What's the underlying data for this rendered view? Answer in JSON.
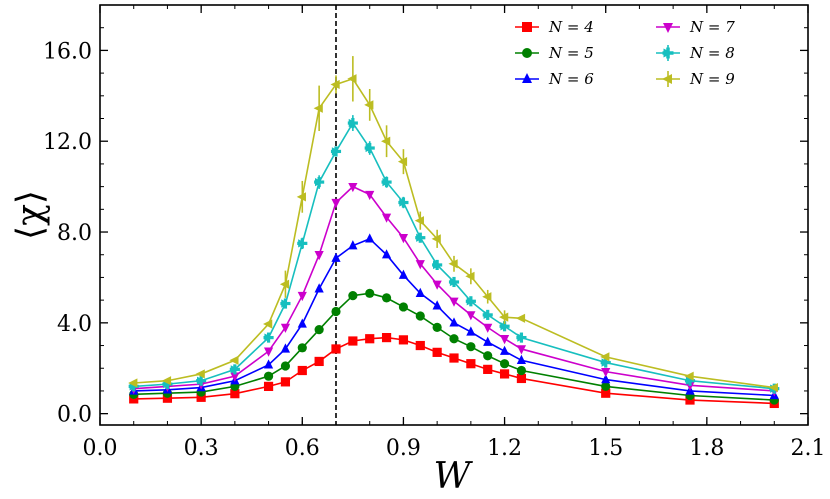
{
  "chart_data": {
    "type": "line",
    "xlabel": "W",
    "ylabel": "⟨χ⟩",
    "xlim": [
      0.0,
      2.1
    ],
    "ylim": [
      -0.5,
      18.0
    ],
    "xticks": [
      "0.0",
      "0.3",
      "0.6",
      "0.9",
      "1.2",
      "1.5",
      "1.8",
      "2.1"
    ],
    "xtick_values": [
      0.0,
      0.3,
      0.6,
      0.9,
      1.2,
      1.5,
      1.8,
      2.1
    ],
    "yticks": [
      "0.0",
      "4.0",
      "8.0",
      "12.0",
      "16.0"
    ],
    "ytick_values": [
      0.0,
      4.0,
      8.0,
      12.0,
      16.0
    ],
    "vline": 0.7,
    "legend_position": "top-right",
    "x": [
      0.1,
      0.2,
      0.3,
      0.4,
      0.5,
      0.55,
      0.6,
      0.65,
      0.7,
      0.75,
      0.8,
      0.85,
      0.9,
      0.95,
      1.0,
      1.05,
      1.1,
      1.15,
      1.2,
      1.25,
      1.5,
      1.75,
      2.0
    ],
    "series": [
      {
        "name": "N = 4",
        "color": "#ff0000",
        "marker": "square",
        "values": [
          0.65,
          0.68,
          0.72,
          0.88,
          1.2,
          1.4,
          1.9,
          2.3,
          2.85,
          3.2,
          3.3,
          3.35,
          3.25,
          3.0,
          2.7,
          2.45,
          2.2,
          1.95,
          1.75,
          1.55,
          0.9,
          0.6,
          0.45
        ],
        "errors": [
          0,
          0,
          0,
          0,
          0,
          0,
          0,
          0,
          0,
          0,
          0,
          0,
          0,
          0,
          0,
          0,
          0,
          0,
          0,
          0,
          0,
          0,
          0
        ]
      },
      {
        "name": "N = 5",
        "color": "#008000",
        "marker": "circle",
        "values": [
          0.85,
          0.9,
          0.95,
          1.2,
          1.65,
          2.1,
          2.9,
          3.7,
          4.5,
          5.2,
          5.3,
          5.1,
          4.7,
          4.3,
          3.8,
          3.3,
          2.95,
          2.55,
          2.2,
          1.9,
          1.2,
          0.8,
          0.6
        ],
        "errors": [
          0,
          0,
          0,
          0,
          0,
          0,
          0,
          0,
          0,
          0,
          0,
          0,
          0,
          0,
          0,
          0,
          0,
          0,
          0,
          0,
          0,
          0,
          0
        ]
      },
      {
        "name": "N = 6",
        "color": "#0000ff",
        "marker": "triangle-up",
        "values": [
          1.0,
          1.05,
          1.15,
          1.45,
          2.15,
          2.85,
          3.95,
          5.5,
          6.85,
          7.4,
          7.7,
          7.0,
          6.1,
          5.3,
          4.75,
          4.0,
          3.6,
          3.15,
          2.75,
          2.35,
          1.5,
          1.0,
          0.8
        ],
        "errors": [
          0,
          0,
          0,
          0,
          0,
          0,
          0,
          0,
          0,
          0,
          0,
          0,
          0,
          0,
          0,
          0,
          0,
          0,
          0,
          0,
          0,
          0,
          0
        ]
      },
      {
        "name": "N = 7",
        "color": "#cc00cc",
        "marker": "triangle-down",
        "values": [
          1.1,
          1.2,
          1.3,
          1.65,
          2.75,
          3.8,
          5.2,
          7.0,
          9.3,
          10.0,
          9.65,
          8.65,
          7.75,
          6.6,
          5.7,
          4.95,
          4.35,
          3.8,
          3.3,
          2.85,
          1.85,
          1.25,
          1.0
        ],
        "errors": [
          0,
          0,
          0,
          0,
          0,
          0,
          0,
          0,
          0,
          0,
          0,
          0,
          0,
          0,
          0,
          0,
          0,
          0,
          0,
          0,
          0,
          0,
          0
        ]
      },
      {
        "name": "N = 8",
        "color": "#17bfbf",
        "marker": "cross",
        "values": [
          1.2,
          1.3,
          1.45,
          1.95,
          3.35,
          4.85,
          7.5,
          10.2,
          11.55,
          12.8,
          11.7,
          10.2,
          9.3,
          7.75,
          6.55,
          5.8,
          4.95,
          4.35,
          3.85,
          3.35,
          2.25,
          1.45,
          1.1
        ],
        "errors": [
          0,
          0,
          0,
          0,
          0,
          0.2,
          0.25,
          0.3,
          0.2,
          0.35,
          0.3,
          0.25,
          0.25,
          0.2,
          0.2,
          0.15,
          0.15,
          0.1,
          0.1,
          0,
          0,
          0,
          0
        ],
        "error_flags": "small"
      },
      {
        "name": "N = 9",
        "color": "#bcbd22",
        "marker": "triangle-left",
        "values": [
          1.35,
          1.45,
          1.75,
          2.35,
          3.95,
          5.7,
          9.55,
          13.45,
          14.5,
          14.75,
          13.6,
          12.0,
          11.1,
          8.5,
          7.7,
          6.6,
          6.05,
          5.15,
          4.25,
          4.2,
          2.5,
          1.65,
          1.15
        ],
        "errors": [
          0,
          0,
          0,
          0,
          0,
          0.6,
          0.7,
          1.0,
          0.4,
          1.0,
          0.7,
          0.7,
          0.55,
          0.4,
          0.4,
          0.35,
          0.35,
          0.3,
          0.3,
          0,
          0,
          0,
          0
        ]
      }
    ]
  }
}
